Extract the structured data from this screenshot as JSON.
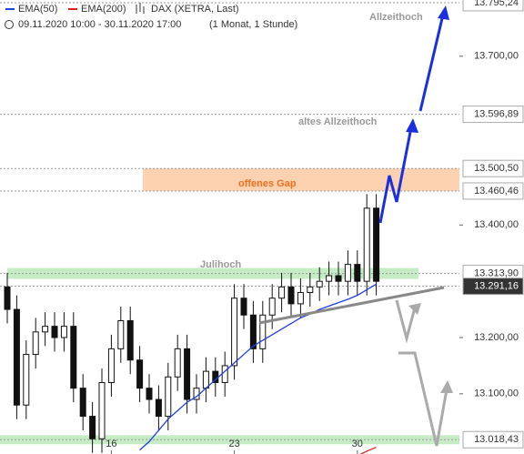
{
  "chart_data": {
    "type": "candlestick",
    "instrument": "DAX (XETRA, Last)",
    "period": "09.11.2020 10:00 - 30.11.2020 17:00",
    "resolution": "(1 Monat, 1 Stunde)",
    "categories": [
      null,
      null,
      null,
      null,
      null,
      null,
      null,
      null,
      null,
      null,
      null,
      "16",
      null,
      null,
      null,
      null,
      null,
      null,
      null,
      null,
      null,
      null,
      null,
      null,
      "23",
      null,
      null,
      null,
      null,
      null,
      null,
      null,
      null,
      null,
      null,
      null,
      null,
      "30",
      null,
      null
    ],
    "open": [
      13290,
      13250,
      13080,
      13170,
      13210,
      13220,
      13200,
      13220,
      13110,
      13060,
      13020,
      13120,
      13180,
      13230,
      13160,
      13110,
      13090,
      13060,
      13130,
      13180,
      13090,
      13110,
      13140,
      13120,
      13150,
      13270,
      13240,
      13180,
      13240,
      13270,
      13290,
      13260,
      13280,
      13290,
      13300,
      13310,
      13300,
      13330,
      13300,
      13430
    ],
    "high": [
      13315,
      13275,
      13195,
      13235,
      13245,
      13245,
      13245,
      13245,
      13135,
      13085,
      13145,
      13205,
      13255,
      13255,
      13185,
      13135,
      13115,
      13155,
      13205,
      13205,
      13135,
      13165,
      13165,
      13175,
      13295,
      13295,
      13265,
      13265,
      13295,
      13315,
      13315,
      13305,
      13315,
      13325,
      13335,
      13335,
      13355,
      13355,
      13455,
      13455
    ],
    "low": [
      13225,
      13055,
      13055,
      13145,
      13185,
      13175,
      13175,
      13085,
      13035,
      12995,
      12995,
      13095,
      13155,
      13135,
      13085,
      13065,
      13035,
      13035,
      13105,
      13065,
      13065,
      13085,
      13095,
      13095,
      13125,
      13215,
      13155,
      13155,
      13215,
      13245,
      13235,
      13235,
      13255,
      13265,
      13275,
      13275,
      13275,
      13275,
      13275,
      13275
    ],
    "close": [
      13250,
      13080,
      13170,
      13210,
      13220,
      13200,
      13220,
      13110,
      13060,
      13020,
      13120,
      13180,
      13230,
      13160,
      13110,
      13090,
      13060,
      13130,
      13180,
      13090,
      13110,
      13140,
      13120,
      13150,
      13270,
      13240,
      13180,
      13240,
      13270,
      13290,
      13260,
      13280,
      13290,
      13300,
      13310,
      13300,
      13330,
      13300,
      13430,
      13300
    ],
    "series": [
      {
        "name": "EMA(50)",
        "color": "#1f3fe0",
        "values": [
          null,
          null,
          null,
          null,
          null,
          null,
          null,
          null,
          null,
          null,
          null,
          null,
          null,
          null,
          13000,
          13015,
          13035,
          13055,
          13070,
          13085,
          13095,
          13110,
          13125,
          13140,
          13155,
          13170,
          13185,
          13195,
          13205,
          13215,
          13225,
          13235,
          13242,
          13250,
          13256,
          13262,
          13268,
          13275,
          13285,
          13295
        ]
      },
      {
        "name": "EMA(200)",
        "color": "#e02020",
        "values": [
          null,
          null,
          null,
          null,
          null,
          null,
          null,
          null,
          null,
          null,
          null,
          null,
          null,
          null,
          null,
          null,
          null,
          null,
          null,
          null,
          null,
          null,
          null,
          null,
          null,
          null,
          null,
          null,
          null,
          null,
          null,
          null,
          null,
          null,
          null,
          null,
          null,
          12990,
          12998,
          13005
        ]
      }
    ],
    "ylim": [
      12993,
      13800
    ],
    "yticks": [
      {
        "value": 13700,
        "label": "13.700,00"
      },
      {
        "value": 13400,
        "label": "13.400,00"
      },
      {
        "value": 13200,
        "label": "13.200,00"
      },
      {
        "value": 13100,
        "label": "13.100,00"
      }
    ],
    "levels": [
      {
        "value": 13795.24,
        "label": "13.795,24"
      },
      {
        "value": 13596.89,
        "label": "13.596,89"
      },
      {
        "value": 13500.5,
        "label": "13.500,50"
      },
      {
        "value": 13460.46,
        "label": "13.460,46"
      },
      {
        "value": 13313.9,
        "label": "13.313,90"
      },
      {
        "value": 13291.16,
        "label": "13.291,16"
      },
      {
        "value": 13018.43,
        "label": "13.018,43"
      }
    ],
    "annotations": [
      "Allzeithoch",
      "altes Allzeithoch",
      "offenes Gap",
      "Julihoch"
    ]
  }
}
